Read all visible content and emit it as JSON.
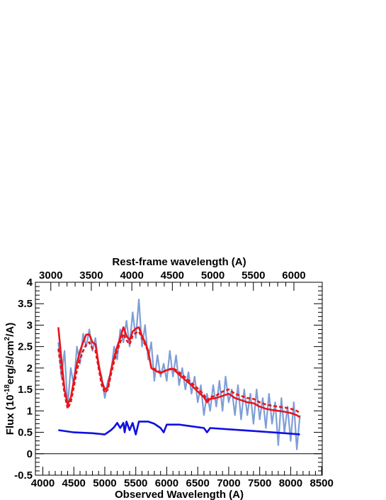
{
  "chart_data": {
    "type": "line",
    "xlabel": "Observed Wavelength (A)",
    "x2label": "Rest-frame wavelength (A)",
    "ylabel_parts": [
      "Flux (10",
      "-18",
      "erg/s/cm",
      "2",
      "/A)"
    ],
    "xlim": [
      3880,
      8510
    ],
    "xticks": [
      4000,
      4500,
      5000,
      5500,
      6000,
      6500,
      7000,
      7500,
      8000,
      8500
    ],
    "x2lim": [
      2810,
      6350
    ],
    "x2ticks": [
      3000,
      3500,
      4000,
      4500,
      5000,
      5500,
      6000
    ],
    "ylim": [
      -0.5,
      4
    ],
    "yticks": [
      -0.5,
      0,
      0.5,
      1,
      1.5,
      2,
      2.5,
      3,
      3.5,
      4
    ],
    "series": [
      {
        "color": "#7f9ed6",
        "x": [
          4250,
          4300,
          4350,
          4400,
          4450,
          4500,
          4550,
          4600,
          4650,
          4700,
          4750,
          4800,
          4850,
          4900,
          4950,
          5000,
          5050,
          5100,
          5150,
          5200,
          5250,
          5300,
          5350,
          5400,
          5450,
          5500,
          5550,
          5600,
          5650,
          5700,
          5750,
          5800,
          5850,
          5900,
          5950,
          6000,
          6050,
          6100,
          6150,
          6200,
          6250,
          6300,
          6350,
          6400,
          6450,
          6500,
          6550,
          6600,
          6650,
          6700,
          6750,
          6800,
          6850,
          6900,
          6950,
          7000,
          7050,
          7100,
          7150,
          7200,
          7250,
          7300,
          7350,
          7400,
          7450,
          7500,
          7550,
          7600,
          7650,
          7700,
          7750,
          7800,
          7850,
          7900,
          7950,
          8000,
          8050,
          8100,
          8150
        ],
        "values": [
          2.6,
          1.8,
          2.4,
          1.1,
          2.0,
          1.6,
          2.5,
          2.1,
          2.8,
          2.5,
          2.9,
          2.4,
          2.7,
          2.0,
          1.8,
          1.3,
          1.7,
          1.9,
          2.5,
          2.2,
          2.9,
          2.6,
          3.1,
          2.5,
          3.3,
          2.7,
          3.6,
          2.5,
          3.0,
          2.2,
          2.6,
          1.7,
          2.3,
          1.8,
          2.1,
          1.7,
          2.4,
          1.8,
          2.3,
          1.6,
          2.0,
          1.5,
          1.9,
          1.4,
          1.8,
          1.2,
          1.6,
          0.9,
          1.4,
          1.0,
          1.6,
          1.1,
          1.7,
          1.0,
          1.8,
          1.2,
          1.5,
          0.9,
          1.6,
          0.8,
          1.5,
          0.9,
          1.4,
          0.7,
          1.5,
          0.8,
          1.3,
          0.6,
          1.4,
          0.7,
          1.2,
          0.2,
          1.3,
          0.5,
          1.1,
          0.3,
          1.2,
          0.1,
          0.9
        ]
      },
      {
        "color": "#e8141c",
        "dashed": true,
        "x": [
          4250,
          4300,
          4350,
          4400,
          4450,
          4500,
          4550,
          4600,
          4650,
          4700,
          4750,
          4800,
          4850,
          4900,
          4950,
          5000,
          5050,
          5100,
          5150,
          5200,
          5250,
          5300,
          5350,
          5400,
          5450,
          5500,
          5550,
          5600,
          5650,
          5700,
          5750,
          5800,
          5900,
          6000,
          6100,
          6200,
          6300,
          6400,
          6500,
          6600,
          6650,
          6700,
          6800,
          6900,
          7000,
          7100,
          7200,
          7300,
          7400,
          7500,
          7600,
          7700,
          7800,
          7900,
          8000,
          8100,
          8150
        ],
        "values": [
          2.45,
          1.9,
          1.4,
          1.05,
          1.2,
          1.55,
          1.95,
          2.2,
          2.4,
          2.55,
          2.6,
          2.45,
          2.4,
          2.0,
          1.6,
          1.42,
          1.5,
          1.85,
          2.15,
          2.4,
          2.6,
          2.8,
          2.65,
          2.55,
          2.75,
          2.82,
          2.85,
          2.7,
          2.55,
          2.38,
          2.02,
          1.98,
          1.9,
          1.95,
          2.0,
          1.9,
          1.78,
          1.65,
          1.52,
          1.38,
          1.25,
          1.32,
          1.36,
          1.45,
          1.5,
          1.4,
          1.35,
          1.3,
          1.28,
          1.2,
          1.15,
          1.12,
          1.1,
          1.08,
          1.05,
          1.0,
          0.95
        ]
      },
      {
        "color": "#e8141c",
        "x": [
          4250,
          4300,
          4350,
          4400,
          4450,
          4500,
          4550,
          4600,
          4650,
          4700,
          4750,
          4800,
          4850,
          4900,
          4950,
          5000,
          5050,
          5100,
          5150,
          5200,
          5250,
          5300,
          5350,
          5400,
          5450,
          5500,
          5550,
          5600,
          5650,
          5700,
          5750,
          5800,
          5900,
          6000,
          6100,
          6200,
          6300,
          6400,
          6500,
          6600,
          6650,
          6700,
          6800,
          6900,
          7000,
          7100,
          7200,
          7300,
          7400,
          7500,
          7600,
          7700,
          7800,
          7900,
          8000,
          8100,
          8150
        ],
        "values": [
          2.95,
          2.2,
          1.5,
          1.15,
          1.3,
          1.7,
          2.1,
          2.4,
          2.6,
          2.78,
          2.78,
          2.6,
          2.55,
          2.1,
          1.7,
          1.5,
          1.55,
          1.95,
          2.25,
          2.5,
          2.7,
          2.95,
          2.75,
          2.65,
          2.85,
          2.92,
          2.95,
          2.75,
          2.6,
          2.4,
          2.0,
          1.95,
          1.88,
          1.95,
          1.98,
          1.85,
          1.72,
          1.6,
          1.45,
          1.32,
          1.2,
          1.28,
          1.3,
          1.35,
          1.4,
          1.3,
          1.25,
          1.2,
          1.18,
          1.1,
          1.05,
          1.02,
          1.0,
          0.98,
          0.95,
          0.9,
          0.85
        ]
      },
      {
        "color": "#1010e0",
        "x": [
          4250,
          4500,
          4800,
          5000,
          5100,
          5150,
          5200,
          5250,
          5300,
          5320,
          5350,
          5400,
          5450,
          5500,
          5550,
          5700,
          5800,
          5900,
          5950,
          6000,
          6200,
          6500,
          6600,
          6650,
          6700,
          7000,
          7500,
          8000,
          8150
        ],
        "values": [
          0.55,
          0.5,
          0.48,
          0.45,
          0.55,
          0.62,
          0.72,
          0.6,
          0.72,
          0.5,
          0.75,
          0.55,
          0.72,
          0.45,
          0.75,
          0.75,
          0.7,
          0.6,
          0.5,
          0.68,
          0.68,
          0.62,
          0.6,
          0.5,
          0.6,
          0.57,
          0.52,
          0.47,
          0.45
        ]
      }
    ]
  }
}
